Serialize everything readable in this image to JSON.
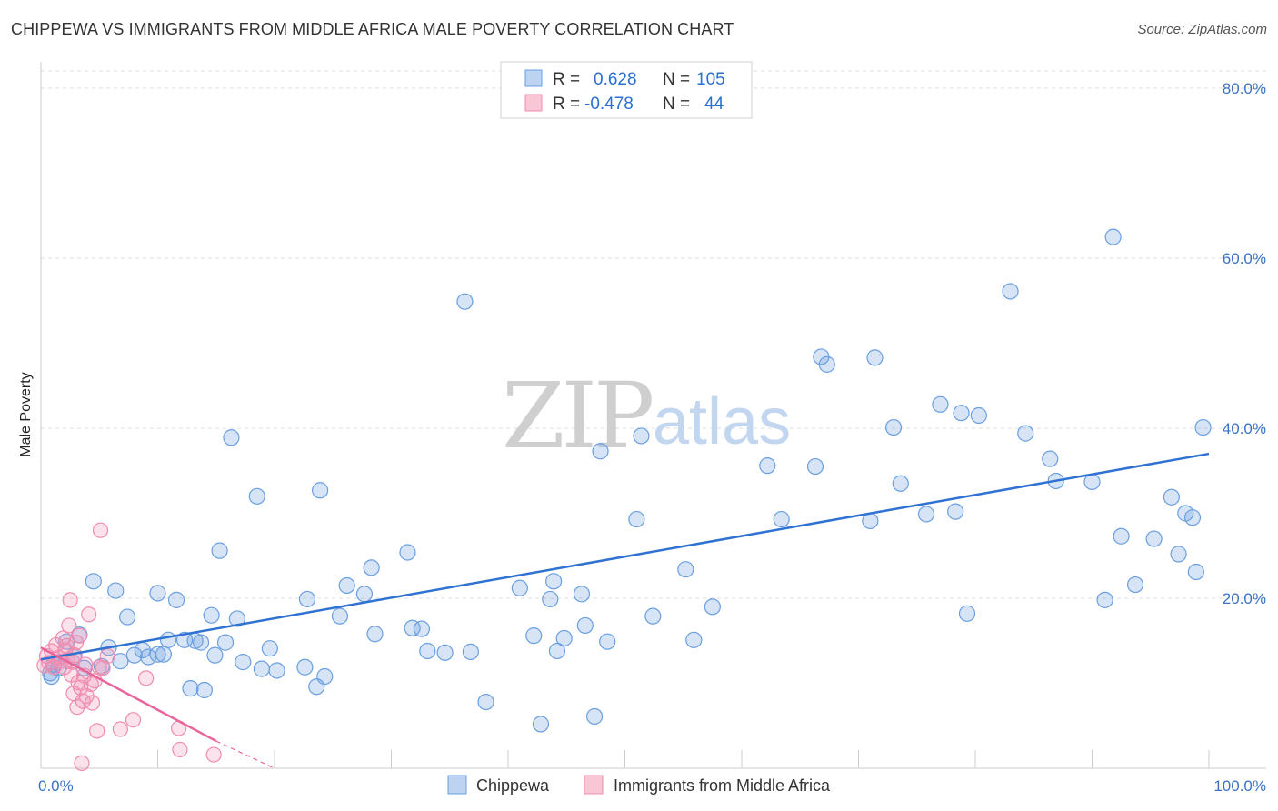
{
  "title": "CHIPPEWA VS IMMIGRANTS FROM MIDDLE AFRICA MALE POVERTY CORRELATION CHART",
  "source": "Source: ZipAtlas.com",
  "watermark": {
    "zip": "ZIP",
    "atlas": "atlas"
  },
  "colors": {
    "blue": "#6a9fe0",
    "blue_line": "#2f72d2",
    "pink": "#f08cae",
    "pink_line": "#e8649a",
    "tick_text": "#3a72c4"
  },
  "legend": {
    "rows": [
      {
        "r_label": "R =",
        "r_value": "0.628",
        "n_label": "N =",
        "n_value": "105"
      },
      {
        "r_label": "R =",
        "r_value": "-0.478",
        "n_label": "N =",
        "n_value": "44"
      }
    ]
  },
  "bottom_legend": [
    "Chippewa",
    "Immigrants from Middle Africa"
  ],
  "chart_data": {
    "type": "scatter",
    "xlabel": "",
    "ylabel": "Male Poverty",
    "xlim": [
      0,
      100
    ],
    "ylim": [
      0,
      80
    ],
    "x_tick_labels": [
      "0.0%",
      "100.0%"
    ],
    "y_ticks": [
      20,
      40,
      60,
      80
    ],
    "y_tick_labels": [
      "20.0%",
      "40.0%",
      "60.0%",
      "80.0%"
    ],
    "grid": "horizontal dashed",
    "legend_position": "top-center",
    "series": [
      {
        "name": "Chippewa",
        "color": "#6a9fe0",
        "points": [
          [
            0.8,
            11.2
          ],
          [
            0.9,
            10.8
          ],
          [
            1.1,
            12.2
          ],
          [
            1.5,
            11.8
          ],
          [
            2.2,
            14.9
          ],
          [
            2.8,
            13.1
          ],
          [
            3.3,
            15.7
          ],
          [
            3.7,
            11.8
          ],
          [
            4.5,
            22.0
          ],
          [
            5.2,
            12.0
          ],
          [
            5.8,
            14.2
          ],
          [
            6.4,
            20.9
          ],
          [
            6.8,
            12.6
          ],
          [
            7.4,
            17.8
          ],
          [
            8.0,
            13.3
          ],
          [
            8.7,
            13.9
          ],
          [
            9.2,
            13.1
          ],
          [
            10.0,
            13.4
          ],
          [
            10.0,
            20.6
          ],
          [
            10.5,
            13.4
          ],
          [
            10.9,
            15.1
          ],
          [
            11.6,
            19.8
          ],
          [
            12.3,
            15.1
          ],
          [
            12.8,
            9.4
          ],
          [
            13.2,
            15.0
          ],
          [
            13.7,
            14.8
          ],
          [
            14.0,
            9.2
          ],
          [
            14.6,
            18.0
          ],
          [
            14.9,
            13.3
          ],
          [
            15.3,
            25.6
          ],
          [
            15.8,
            14.8
          ],
          [
            16.3,
            38.9
          ],
          [
            16.8,
            17.6
          ],
          [
            17.3,
            12.5
          ],
          [
            18.5,
            32.0
          ],
          [
            18.9,
            11.7
          ],
          [
            19.6,
            14.1
          ],
          [
            20.2,
            11.5
          ],
          [
            22.6,
            11.9
          ],
          [
            22.8,
            19.9
          ],
          [
            23.6,
            9.6
          ],
          [
            23.9,
            32.7
          ],
          [
            24.3,
            10.8
          ],
          [
            25.6,
            17.9
          ],
          [
            26.2,
            21.5
          ],
          [
            27.7,
            20.5
          ],
          [
            28.3,
            23.6
          ],
          [
            28.6,
            15.8
          ],
          [
            31.4,
            25.4
          ],
          [
            31.8,
            16.5
          ],
          [
            32.6,
            16.4
          ],
          [
            33.1,
            13.8
          ],
          [
            34.6,
            13.6
          ],
          [
            36.3,
            54.9
          ],
          [
            36.8,
            13.7
          ],
          [
            38.1,
            7.8
          ],
          [
            41.0,
            21.2
          ],
          [
            42.2,
            15.6
          ],
          [
            42.8,
            5.2
          ],
          [
            43.6,
            19.9
          ],
          [
            43.9,
            22.0
          ],
          [
            44.2,
            13.8
          ],
          [
            44.8,
            15.3
          ],
          [
            46.3,
            20.5
          ],
          [
            46.6,
            16.8
          ],
          [
            47.4,
            6.1
          ],
          [
            47.9,
            37.3
          ],
          [
            48.5,
            14.9
          ],
          [
            51.0,
            29.3
          ],
          [
            51.4,
            39.1
          ],
          [
            52.4,
            17.9
          ],
          [
            55.2,
            23.4
          ],
          [
            55.9,
            15.1
          ],
          [
            57.5,
            19.0
          ],
          [
            62.2,
            35.6
          ],
          [
            63.4,
            29.3
          ],
          [
            66.3,
            35.5
          ],
          [
            66.8,
            48.4
          ],
          [
            67.3,
            47.5
          ],
          [
            71.0,
            29.1
          ],
          [
            71.4,
            48.3
          ],
          [
            73.0,
            40.1
          ],
          [
            73.6,
            33.5
          ],
          [
            75.8,
            29.9
          ],
          [
            77.0,
            42.8
          ],
          [
            78.3,
            30.2
          ],
          [
            78.8,
            41.8
          ],
          [
            79.3,
            18.2
          ],
          [
            80.3,
            41.5
          ],
          [
            83.0,
            56.1
          ],
          [
            84.3,
            39.4
          ],
          [
            86.4,
            36.4
          ],
          [
            86.9,
            33.8
          ],
          [
            90.0,
            33.7
          ],
          [
            91.1,
            19.8
          ],
          [
            91.8,
            62.5
          ],
          [
            93.7,
            21.6
          ],
          [
            95.3,
            27.0
          ],
          [
            96.8,
            31.9
          ],
          [
            97.4,
            25.2
          ],
          [
            98.6,
            29.5
          ],
          [
            99.5,
            40.1
          ],
          [
            92.5,
            27.3
          ],
          [
            98.0,
            30.0
          ],
          [
            98.9,
            23.1
          ]
        ]
      },
      {
        "name": "Immigrants from Middle Africa",
        "color": "#f08cae",
        "points": [
          [
            0.3,
            12.1
          ],
          [
            0.5,
            13.2
          ],
          [
            0.7,
            12.4
          ],
          [
            0.9,
            13.8
          ],
          [
            1.1,
            11.9
          ],
          [
            1.3,
            14.5
          ],
          [
            1.5,
            13.0
          ],
          [
            1.7,
            12.6
          ],
          [
            1.9,
            15.3
          ],
          [
            2.0,
            11.9
          ],
          [
            2.1,
            13.9
          ],
          [
            2.2,
            14.4
          ],
          [
            2.3,
            12.8
          ],
          [
            2.4,
            16.8
          ],
          [
            2.5,
            19.8
          ],
          [
            2.6,
            11.0
          ],
          [
            2.7,
            12.5
          ],
          [
            2.8,
            8.8
          ],
          [
            2.9,
            13.3
          ],
          [
            3.0,
            14.8
          ],
          [
            3.1,
            7.2
          ],
          [
            3.2,
            10.1
          ],
          [
            3.3,
            15.6
          ],
          [
            3.4,
            9.5
          ],
          [
            3.5,
            0.6
          ],
          [
            3.6,
            7.9
          ],
          [
            3.7,
            10.9
          ],
          [
            3.8,
            12.2
          ],
          [
            3.9,
            8.5
          ],
          [
            4.1,
            18.1
          ],
          [
            4.3,
            9.9
          ],
          [
            4.4,
            7.7
          ],
          [
            4.6,
            10.3
          ],
          [
            4.8,
            4.4
          ],
          [
            5.0,
            11.9
          ],
          [
            5.1,
            28.0
          ],
          [
            5.3,
            11.8
          ],
          [
            5.7,
            13.2
          ],
          [
            6.8,
            4.6
          ],
          [
            7.9,
            5.7
          ],
          [
            9.0,
            10.6
          ],
          [
            11.8,
            4.7
          ],
          [
            11.9,
            2.2
          ],
          [
            14.8,
            1.6
          ]
        ]
      }
    ],
    "trend_lines": [
      {
        "series": "Chippewa",
        "from": [
          0,
          12.8
        ],
        "to": [
          100,
          37.0
        ]
      },
      {
        "series": "Immigrants from Middle Africa",
        "from": [
          0,
          14.2
        ],
        "to": [
          15,
          3.2
        ],
        "dashed_to": [
          20,
          0
        ]
      }
    ]
  }
}
